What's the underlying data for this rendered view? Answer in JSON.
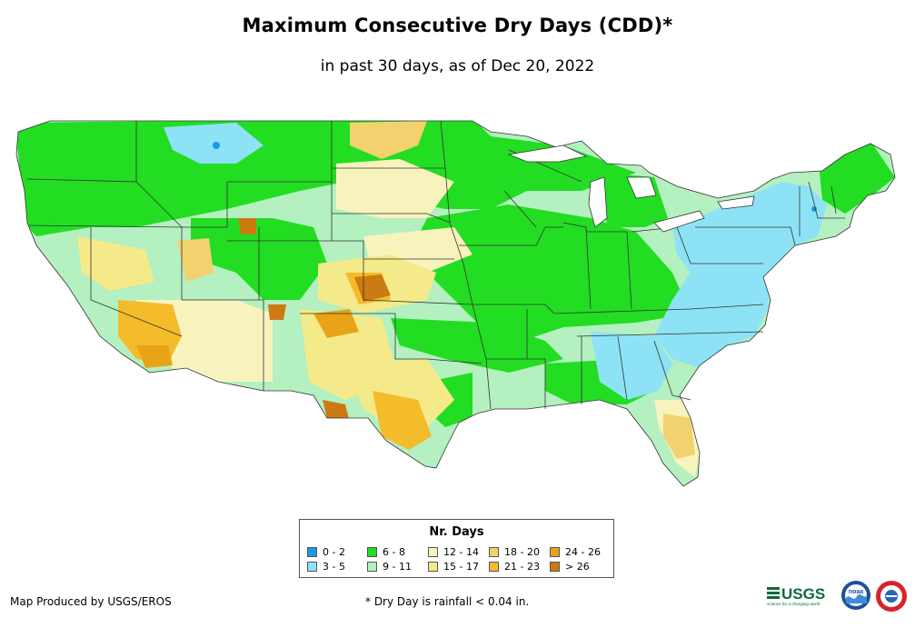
{
  "title": "Maximum Consecutive Dry Days (CDD)*",
  "subtitle": "in past 30 days, as of Dec 20, 2022",
  "legend": {
    "title": "Nr. Days",
    "items": [
      {
        "label": "0 - 2",
        "color": "#1a9ae6"
      },
      {
        "label": "3 - 5",
        "color": "#8ee2f5"
      },
      {
        "label": "6 - 8",
        "color": "#22dd22"
      },
      {
        "label": "9 - 11",
        "color": "#b4f0c0"
      },
      {
        "label": "12 - 14",
        "color": "#f8f3bd"
      },
      {
        "label": "15 - 17",
        "color": "#f5ea8a"
      },
      {
        "label": "18 - 20",
        "color": "#f1d26e"
      },
      {
        "label": "21 - 23",
        "color": "#f4bb2b"
      },
      {
        "label": "24 - 26",
        "color": "#e9a318"
      },
      {
        "label": "> 26",
        "color": "#cc7a12"
      }
    ]
  },
  "footer": {
    "credit": "Map Produced by USGS/EROS",
    "note": "* Dry Day is rainfall < 0.04 in."
  },
  "logos": {
    "usgs": "USGS",
    "usgs_tagline": "science for a changing world",
    "noaa": "noaa"
  }
}
